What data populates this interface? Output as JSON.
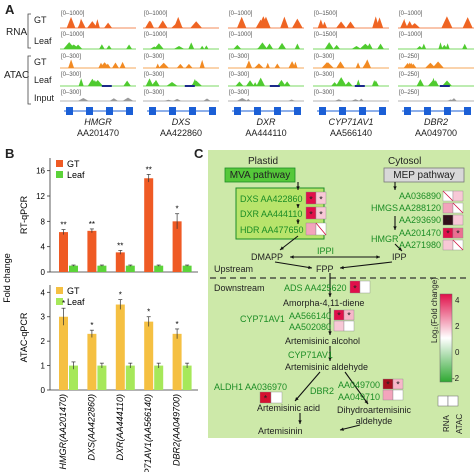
{
  "panel_a": {
    "label": "A",
    "row_groups": [
      "RNA",
      "ATAC"
    ],
    "tracks": [
      "GT",
      "Leaf",
      "GT",
      "Leaf",
      "Input"
    ],
    "genes": [
      {
        "name": "HMGR",
        "id": "AA201470",
        "scales": [
          "[0–1000]",
          "[0–1000]",
          "[0–300]",
          "[0–300]",
          "[0–300]"
        ]
      },
      {
        "name": "DXS",
        "id": "AA422860",
        "scales": [
          "[0–1000]",
          "[0–1000]",
          "[0–300]",
          "[0–300]",
          "[0–300]"
        ]
      },
      {
        "name": "DXR",
        "id": "AA444110",
        "scales": [
          "[0–1000]",
          "[0–1000]",
          "[0–300]",
          "[0–300]",
          "[0–300]"
        ]
      },
      {
        "name": "CYP71AV1",
        "id": "AA566140",
        "scales": [
          "[0–1500]",
          "[0–1500]",
          "[0–300]",
          "[0–300]",
          "[0–300]"
        ]
      },
      {
        "name": "DBR2",
        "id": "AA049700",
        "scales": [
          "[0–1000]",
          "[0–1000]",
          "[0–250]",
          "[0–250]",
          "[0–250]"
        ]
      }
    ]
  },
  "panel_b": {
    "label": "B",
    "fold_change_label": "Fold change",
    "chart_data": [
      {
        "type": "bar",
        "ylabel": "RT-qPCR",
        "ylim": [
          0,
          18
        ],
        "yticks": [
          0,
          4,
          8,
          12,
          16
        ],
        "categories": [
          "HMGR(AA201470)",
          "DXS(AA422860)",
          "DXR(AA444110)",
          "CYP71AV1(AA566140)",
          "DBR2(AA049700)"
        ],
        "series": [
          {
            "name": "GT",
            "color": "#ef5a24",
            "values": [
              6.3,
              6.5,
              3.1,
              14.8,
              8.0
            ],
            "errors": [
              0.4,
              0.3,
              0.3,
              0.6,
              1.2
            ]
          },
          {
            "name": "Leaf",
            "color": "#5cd33a",
            "values": [
              1.0,
              1.0,
              1.0,
              1.0,
              1.0
            ],
            "errors": [
              0.1,
              0.1,
              0.1,
              0.1,
              0.1
            ]
          }
        ],
        "significance": [
          "**",
          "**",
          "**",
          "**",
          "*"
        ]
      },
      {
        "type": "bar",
        "ylabel": "ATAC-qPCR",
        "ylim": [
          0,
          4.3
        ],
        "yticks": [
          0,
          1,
          2,
          3,
          4
        ],
        "categories": [
          "HMGR(AA201470)",
          "DXS(AA422860)",
          "DXR(AA444110)",
          "CYP71AV1(AA566140)",
          "DBR2(AA049700)"
        ],
        "series": [
          {
            "name": "GT",
            "color": "#f5c042",
            "values": [
              3.0,
              2.3,
              3.5,
              2.8,
              2.3
            ],
            "errors": [
              0.35,
              0.15,
              0.2,
              0.2,
              0.2
            ]
          },
          {
            "name": "Leaf",
            "color": "#a6e85a",
            "values": [
              1.0,
              1.0,
              1.0,
              1.0,
              1.0
            ],
            "errors": [
              0.15,
              0.1,
              0.1,
              0.1,
              0.1
            ]
          }
        ],
        "significance": [
          "*",
          "*",
          "*",
          "*",
          "*"
        ]
      }
    ]
  },
  "panel_c": {
    "label": "C",
    "plastid": "Plastid",
    "cytosol": "Cytosol",
    "mva_pathway": "MVA pathway",
    "mep_pathway": "MEP pathway",
    "mva_genes": [
      "DXS AA422860",
      "DXR AA444110",
      "HDR AA477650"
    ],
    "hmgs_label": "HMGS",
    "hmgs_ids": [
      "AA036890",
      "AA288120",
      "AA293690"
    ],
    "hmgr_label": "HMGR",
    "hmgr_ids": [
      "AA201470",
      "AA271980"
    ],
    "dmapp": "DMAPP",
    "ippi": "IPPI",
    "ipp": "IPP",
    "fpp": "FPP",
    "upstream": "Upstream",
    "downstream": "Downstream",
    "ads": "ADS AA425620",
    "amorpha": "Amorpha-4,11-diene",
    "cyp_label": "CYP71AV1",
    "cyp_ids": [
      "AA566140",
      "AA502080"
    ],
    "art_alcohol": "Artemisinic alcohol",
    "cyp_label2": "CYP71AV1",
    "art_aldehyde": "Artemisinic aldehyde",
    "aldh": "ALDH1 AA036970",
    "dbr2_label": "DBR2",
    "dbr2_ids": [
      "AA049700",
      "AA049710"
    ],
    "art_acid": "Artemisinic acid",
    "dihydro": "Dihydroartemisinic aldehyde",
    "artemisinin": "Artemisinin",
    "legend_title": "Log₂(Fold change)",
    "legend_ticks": [
      "4",
      "2",
      "0",
      "-2"
    ],
    "col_labels": [
      "RNA",
      "ATAC"
    ],
    "colors": {
      "high": "#e0104a",
      "mid": "#f8c8d6",
      "low": "#2fa832",
      "background": "#cde9a9"
    }
  }
}
